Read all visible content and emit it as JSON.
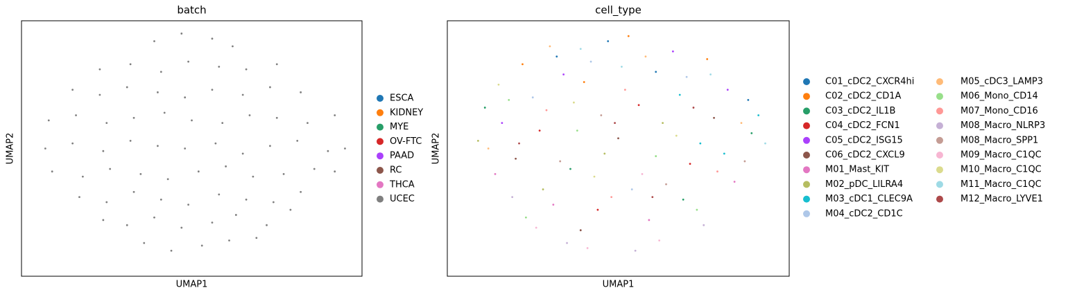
{
  "chart_data": [
    {
      "type": "scatter",
      "title": "batch",
      "x_label": "UMAP1",
      "y_label": "UMAP2",
      "xlim": [
        0,
        10
      ],
      "ylim": [
        0,
        10
      ],
      "legend": "right",
      "legend_columns": 1,
      "series": [
        {
          "name": "ESCA",
          "color": "#1f77b4",
          "x": [],
          "values": []
        },
        {
          "name": "KIDNEY",
          "color": "#ff7f0e",
          "x": [],
          "values": []
        },
        {
          "name": "MYE",
          "color": "#279e68",
          "x": [],
          "values": []
        },
        {
          "name": "OV-FTC",
          "color": "#d62728",
          "x": [],
          "values": []
        },
        {
          "name": "PAAD",
          "color": "#aa40fc",
          "x": [],
          "values": []
        },
        {
          "name": "RC",
          "color": "#8c564b",
          "x": [],
          "values": []
        },
        {
          "name": "THCA",
          "color": "#e377c2",
          "x": [],
          "values": []
        },
        {
          "name": "UCEC",
          "color": "#7f7f7f",
          "x": [
            3.6,
            4.4,
            5.3,
            6.1,
            6.9,
            2.4,
            3.1,
            3.9,
            4.7,
            5.6,
            6.3,
            7.2,
            7.9,
            1.7,
            2.5,
            3.3,
            4.1,
            4.9,
            5.8,
            6.6,
            7.4,
            8.2,
            0.9,
            1.8,
            2.6,
            3.5,
            4.3,
            5.2,
            6.0,
            6.8,
            7.7,
            8.6,
            9.2,
            0.7,
            1.5,
            2.4,
            3.2,
            4.0,
            4.8,
            5.7,
            6.5,
            7.3,
            8.1,
            9.0,
            9.5,
            0.8,
            1.6,
            2.5,
            3.3,
            4.2,
            5.0,
            5.9,
            6.7,
            7.5,
            8.4,
            9.2,
            1.5,
            2.3,
            3.1,
            4.0,
            4.8,
            5.6,
            6.5,
            7.3,
            8.2,
            2.3,
            3.2,
            4.1,
            4.9,
            5.8,
            6.6,
            7.5,
            3.9,
            4.7,
            5.6,
            6.2
          ],
          "values": [
            1.3,
            1.0,
            1.2,
            1.4,
            1.5,
            2.2,
            2.0,
            2.3,
            1.9,
            2.1,
            2.4,
            2.0,
            2.6,
            3.1,
            2.9,
            3.3,
            3.0,
            2.8,
            3.2,
            3.0,
            2.9,
            3.3,
            4.1,
            3.9,
            4.2,
            4.0,
            3.8,
            4.1,
            4.3,
            3.9,
            4.0,
            4.2,
            4.1,
            5.0,
            5.2,
            4.9,
            5.3,
            5.1,
            5.0,
            5.2,
            4.8,
            5.1,
            5.3,
            4.9,
            5.0,
            6.1,
            6.3,
            6.0,
            6.2,
            6.4,
            6.1,
            6.0,
            6.3,
            6.2,
            6.0,
            6.3,
            7.3,
            7.1,
            7.4,
            7.2,
            7.0,
            7.3,
            7.1,
            7.4,
            7.2,
            8.1,
            8.3,
            8.0,
            8.4,
            8.2,
            8.1,
            8.3,
            9.2,
            9.5,
            9.3,
            9.0
          ]
        }
      ]
    },
    {
      "type": "scatter",
      "title": "cell_type",
      "x_label": "UMAP1",
      "y_label": "UMAP2",
      "xlim": [
        0,
        10
      ],
      "ylim": [
        0,
        10
      ],
      "legend": "right",
      "legend_columns": 2,
      "series": [
        {
          "name": "C01_cDC2_CXCR4hi",
          "color": "#1f77b4",
          "x": [
            3.2,
            6.1,
            8.8,
            4.7
          ],
          "values": [
            8.6,
            8.0,
            6.9,
            9.2
          ]
        },
        {
          "name": "C02_cDC2_CD1A",
          "color": "#ff7f0e",
          "x": [
            2.2,
            5.3,
            7.6,
            4.0
          ],
          "values": [
            8.3,
            9.4,
            8.5,
            7.6
          ]
        },
        {
          "name": "C03_cDC2_IL1B",
          "color": "#279e68",
          "x": [
            1.1,
            3.6,
            6.9,
            8.9
          ],
          "values": [
            6.6,
            4.2,
            3.0,
            5.6
          ]
        },
        {
          "name": "C04_cDC2_FCN1",
          "color": "#d62728",
          "x": [
            2.7,
            5.6,
            7.1,
            4.4
          ],
          "values": [
            5.7,
            6.7,
            4.4,
            2.6
          ]
        },
        {
          "name": "C05_cDC2_ISG15",
          "color": "#aa40fc",
          "x": [
            3.4,
            6.6,
            8.2,
            1.6
          ],
          "values": [
            7.9,
            8.8,
            7.3,
            6.0
          ]
        },
        {
          "name": "C06_cDC2_CXCL9",
          "color": "#8c564b",
          "x": [
            2.0,
            5.0,
            7.8,
            3.9
          ],
          "values": [
            4.6,
            5.4,
            6.2,
            1.8
          ]
        },
        {
          "name": "M01_Mast_KIT",
          "color": "#e377c2",
          "x": [
            1.4,
            3.1,
            5.9,
            8.4
          ],
          "values": [
            4.0,
            2.8,
            2.2,
            3.7
          ]
        },
        {
          "name": "M02_pDC_LILRA4",
          "color": "#b5bd61",
          "x": [
            0.9,
            4.6,
            6.3,
            2.8
          ],
          "values": [
            5.3,
            4.8,
            6.0,
            3.4
          ]
        },
        {
          "name": "M03_cDC1_CLEC9A",
          "color": "#17becf",
          "x": [
            7.4,
            9.1,
            8.1,
            6.8
          ],
          "values": [
            5.2,
            6.3,
            4.8,
            7.1
          ]
        },
        {
          "name": "M04_cDC2_CD1C",
          "color": "#aec7e8",
          "x": [
            4.2,
            7.0,
            2.5,
            5.4
          ],
          "values": [
            8.4,
            7.8,
            7.0,
            3.4
          ]
        },
        {
          "name": "M05_cDC3_LAMP3",
          "color": "#ffbb78",
          "x": [
            3.0,
            5.8,
            8.6,
            1.2
          ],
          "values": [
            9.0,
            8.6,
            6.0,
            5.0
          ]
        },
        {
          "name": "M06_Mono_CD14",
          "color": "#98df8a",
          "x": [
            1.8,
            3.8,
            6.1,
            2.3,
            7.3
          ],
          "values": [
            6.9,
            5.7,
            4.7,
            2.3,
            2.6
          ]
        },
        {
          "name": "M07_Mono_CD16",
          "color": "#ff9896",
          "x": [
            2.9,
            5.2,
            7.9,
            4.8
          ],
          "values": [
            6.5,
            7.3,
            4.1,
            3.1
          ]
        },
        {
          "name": "M08_Macro_NLRP3",
          "color": "#c5b0d5",
          "x": [
            3.5,
            5.5,
            7.5,
            1.9
          ],
          "values": [
            1.3,
            1.0,
            2.0,
            3.1
          ]
        },
        {
          "name": "M08_Macro_SPP1",
          "color": "#c49c94",
          "x": [
            4.5,
            6.4,
            3.3,
            8.7
          ],
          "values": [
            6.3,
            3.6,
            4.5,
            4.5
          ]
        },
        {
          "name": "M09_Macro_C1QC",
          "color": "#f7b6d2",
          "x": [
            4.1,
            6.2,
            2.6,
            5.7
          ],
          "values": [
            1.1,
            1.4,
            1.9,
            4.0
          ]
        },
        {
          "name": "M10_Macro_C1QC",
          "color": "#dbdb8d",
          "x": [
            1.5,
            6.7,
            4.3,
            3.7
          ],
          "values": [
            7.5,
            5.5,
            3.9,
            6.8
          ]
        },
        {
          "name": "M11_Macro_C1QC",
          "color": "#9edae5",
          "x": [
            3.9,
            7.7,
            9.3,
            5.1
          ],
          "values": [
            8.9,
            7.9,
            5.2,
            8.2
          ]
        },
        {
          "name": "M12_Macro_LYVE1",
          "color": "#ad494a",
          "x": [
            2.1,
            4.9,
            6.0,
            7.2
          ],
          "values": [
            5.2,
            6.0,
            3.1,
            6.6
          ]
        }
      ]
    }
  ]
}
